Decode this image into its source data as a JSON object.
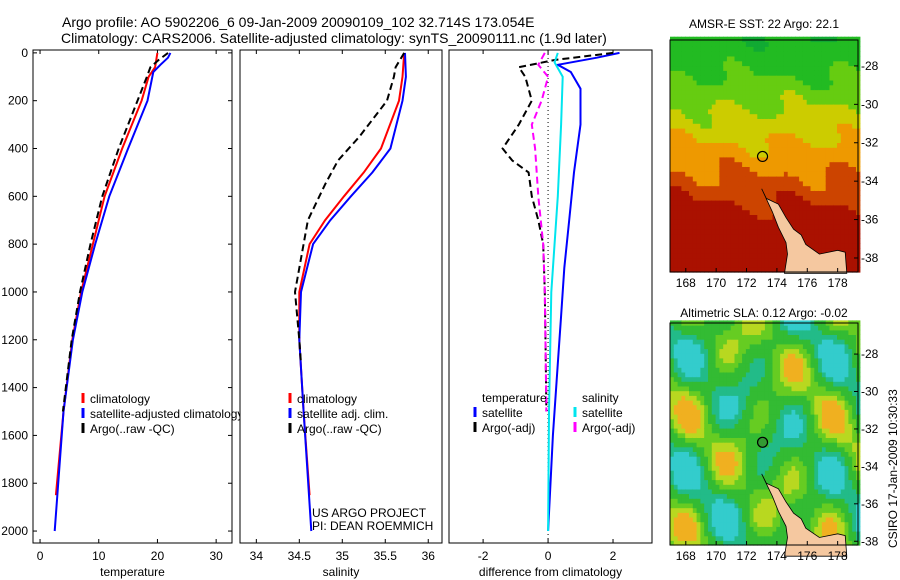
{
  "header": {
    "title_line1": "Argo profile: AO 5902206_6 09-Jan-2009 20090109_102 32.714S 173.054E",
    "title_line2": "Climatology: CARS2006. Satellite-adjusted climatology: synTS_20090111.nc (1.9d later)"
  },
  "annotations": {
    "project": "US ARGO PROJECT",
    "pi": "PI: DEAN ROEMMICH",
    "credit": "CSIRO 17-Jan-2009 10:30:33"
  },
  "colors": {
    "climatology": "#ff0000",
    "satellite": "#0000ff",
    "argo": "#000000",
    "sal_satellite": "#00e5ee",
    "sal_argo": "#ff00ff"
  },
  "chart_data": [
    {
      "type": "line",
      "id": "temperature",
      "xlabel": "temperature",
      "ylabel": "",
      "xlim": [
        -1.2,
        32.7
      ],
      "ylim": [
        2050,
        -12
      ],
      "xticks": [
        0,
        10,
        20,
        30
      ],
      "yticks": [
        0,
        200,
        400,
        600,
        800,
        1000,
        1200,
        1400,
        1600,
        1800,
        2000
      ],
      "legend": [
        "climatology",
        "satellite-adjusted climatology",
        "Argo(..raw -QC)"
      ],
      "series": [
        {
          "name": "climatology",
          "color": "#ff0000",
          "dash": false,
          "depth": [
            0,
            60,
            100,
            200,
            400,
            600,
            800,
            1000,
            1200,
            1500,
            1850
          ],
          "values": [
            20,
            19.6,
            18.5,
            17.3,
            14,
            11,
            9,
            7,
            5.5,
            4,
            2.7
          ]
        },
        {
          "name": "satellite-adjusted climatology",
          "color": "#0000ff",
          "dash": false,
          "depth": [
            0,
            20,
            50,
            80,
            200,
            400,
            600,
            800,
            1000,
            1200,
            1500,
            2000
          ],
          "values": [
            22.2,
            21.8,
            20.5,
            19.3,
            18.3,
            15,
            11.8,
            9.4,
            7.2,
            5.6,
            4,
            2.5
          ]
        },
        {
          "name": "Argo(..raw -QC)",
          "color": "#000000",
          "dash": true,
          "depth": [
            0,
            30,
            60,
            100,
            200,
            400,
            600,
            800,
            1000,
            1200,
            1500
          ],
          "values": [
            21.8,
            20.2,
            18.8,
            18.2,
            16.6,
            13.4,
            10.6,
            8.6,
            6.8,
            5.4,
            3.9
          ]
        }
      ]
    },
    {
      "type": "line",
      "id": "salinity",
      "xlabel": "salinity",
      "ylabel": "",
      "xlim": [
        33.81,
        36.16
      ],
      "ylim": [
        2050,
        -12
      ],
      "xticks": [
        34,
        34.5,
        35,
        35.5,
        36
      ],
      "yticks": [],
      "legend": [
        "climatology",
        "satellite adj. clim.",
        "Argo(..raw -QC)"
      ],
      "series": [
        {
          "name": "climatology",
          "color": "#ff0000",
          "dash": false,
          "depth": [
            0,
            100,
            200,
            400,
            500,
            600,
            700,
            800,
            1000,
            1200,
            1500,
            1850
          ],
          "values": [
            35.72,
            35.7,
            35.66,
            35.45,
            35.25,
            35.02,
            34.8,
            34.62,
            34.5,
            34.5,
            34.55,
            34.62
          ]
        },
        {
          "name": "satellite adj. clim.",
          "color": "#0000ff",
          "dash": false,
          "depth": [
            0,
            100,
            200,
            400,
            500,
            600,
            700,
            800,
            1000,
            1200,
            1500,
            2000
          ],
          "values": [
            35.73,
            35.74,
            35.7,
            35.56,
            35.35,
            35.1,
            34.86,
            34.66,
            34.52,
            34.5,
            34.55,
            34.64
          ]
        },
        {
          "name": "Argo(..raw -QC)",
          "color": "#000000",
          "dash": true,
          "depth": [
            0,
            60,
            100,
            200,
            350,
            450,
            550,
            700,
            900,
            1000,
            1200,
            1300
          ],
          "values": [
            35.72,
            35.62,
            35.6,
            35.52,
            35.2,
            34.95,
            34.8,
            34.6,
            34.5,
            34.45,
            34.5,
            34.52
          ]
        }
      ]
    },
    {
      "type": "line",
      "id": "difference",
      "xlabel": "difference from climatology",
      "ylabel": "",
      "xlim": [
        -3.05,
        3.2
      ],
      "ylim": [
        2050,
        -12
      ],
      "xticks": [
        -2,
        0,
        2
      ],
      "yticks": [],
      "legend_temp_title": "temperature",
      "legend_sal_title": "salinity",
      "legend": [
        "satellite",
        "Argo(-adj)",
        "satellite",
        "Argo(-adj)"
      ],
      "series": [
        {
          "name": "satellite",
          "group": "temperature",
          "color": "#0000ff",
          "dash": false,
          "depth": [
            0,
            20,
            50,
            80,
            150,
            300,
            500,
            700,
            900,
            1100,
            1300,
            1600,
            2000
          ],
          "values": [
            2.2,
            1.5,
            0.3,
            0.7,
            1.0,
            1.0,
            0.8,
            0.65,
            0.5,
            0.4,
            0.3,
            0.15,
            0.0
          ]
        },
        {
          "name": "Argo(-adj)",
          "group": "temperature",
          "color": "#000000",
          "dash": true,
          "depth": [
            0,
            30,
            60,
            100,
            200,
            300,
            400,
            450,
            500,
            600,
            700,
            800,
            1000,
            1200,
            1500
          ],
          "values": [
            2.0,
            0.2,
            -0.9,
            -0.7,
            -0.5,
            -0.9,
            -1.4,
            -1.1,
            -0.6,
            -0.5,
            -0.3,
            -0.15,
            -0.1,
            -0.08,
            -0.05
          ]
        },
        {
          "name": "satellite",
          "group": "salinity",
          "color": "#00e5ee",
          "dash": false,
          "depth": [
            0,
            40,
            100,
            300,
            600,
            1000,
            1500,
            2000
          ],
          "values": [
            0.3,
            0.2,
            0.45,
            0.4,
            0.3,
            0.1,
            0.03,
            0.0
          ]
        },
        {
          "name": "Argo(-adj)",
          "group": "salinity",
          "color": "#ff00ff",
          "dash": true,
          "depth": [
            0,
            50,
            100,
            200,
            300,
            400,
            600,
            800,
            1000,
            1500
          ],
          "values": [
            -0.1,
            -0.3,
            0.0,
            -0.2,
            -0.5,
            -0.4,
            -0.3,
            -0.15,
            -0.1,
            -0.05
          ]
        }
      ]
    }
  ],
  "maps": [
    {
      "title": "AMSR-E SST: 22 Argo: 22.1",
      "kind": "sst",
      "lon_ticks": [
        168,
        170,
        172,
        174,
        176,
        178
      ],
      "lat_ticks": [
        -28,
        -30,
        -32,
        -34,
        -36,
        -38
      ],
      "lonlim": [
        166.96,
        179.34
      ],
      "latlim": [
        -38.73,
        -26.65
      ]
    },
    {
      "title": "Altimetric SLA: 0.12 Argo: -0.02",
      "kind": "sla",
      "lon_ticks": [
        168,
        170,
        172,
        174,
        176,
        178
      ],
      "lat_ticks": [
        -28,
        -30,
        -32,
        -34,
        -36,
        -38
      ],
      "lonlim": [
        166.96,
        179.34
      ],
      "latlim": [
        -38.2,
        -26.34
      ]
    }
  ],
  "argo_position": {
    "lon": 173.054,
    "lat": -32.714
  }
}
